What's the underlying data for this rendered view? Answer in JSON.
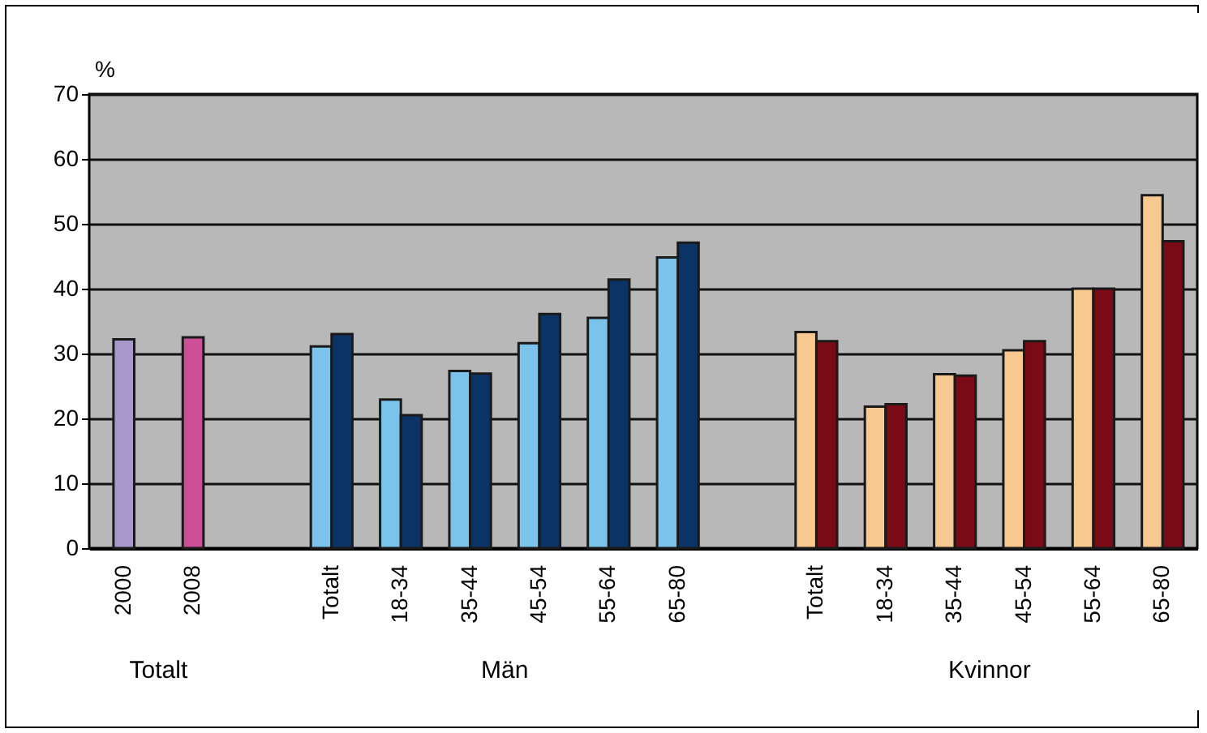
{
  "chart_data": {
    "type": "bar",
    "ylabel": "%",
    "categories": [
      "2000",
      "2008",
      null,
      "Totalt",
      "18-34",
      "35-44",
      "45-54",
      "55-64",
      "65-80",
      null,
      "Totalt",
      "18-34",
      "35-44",
      "45-54",
      "55-64",
      "65-80"
    ],
    "series": [
      {
        "values": [
          32.2,
          null,
          null,
          31.1,
          22.9,
          27.3,
          31.6,
          35.5,
          44.8,
          null,
          33.3,
          21.8,
          26.8,
          30.5,
          40.0,
          54.4
        ],
        "colors": [
          "#a899cc",
          null,
          null,
          "#7cc3ec",
          "#7cc3ec",
          "#7cc3ec",
          "#7cc3ec",
          "#7cc3ec",
          "#7cc3ec",
          null,
          "#f8c891",
          "#f8c891",
          "#f8c891",
          "#f8c891",
          "#f8c891",
          "#f8c891"
        ]
      },
      {
        "values": [
          null,
          32.5,
          null,
          33.0,
          20.5,
          26.9,
          36.1,
          41.4,
          47.1,
          null,
          31.9,
          22.2,
          26.6,
          31.9,
          40.0,
          47.3
        ],
        "colors": [
          null,
          "#cc4f97",
          null,
          "#0c3366",
          "#0c3366",
          "#0c3366",
          "#0c3366",
          "#0c3366",
          "#0c3366",
          null,
          "#7a0a16",
          "#7a0a16",
          "#7a0a16",
          "#7a0a16",
          "#7a0a16",
          "#7a0a16"
        ]
      }
    ],
    "ylim": [
      0,
      70
    ],
    "yticks": [
      0,
      10,
      20,
      30,
      40,
      50,
      60,
      70
    ],
    "grid": "y",
    "annotations": [
      "Totalt",
      "Män",
      "Kvinnor"
    ]
  }
}
